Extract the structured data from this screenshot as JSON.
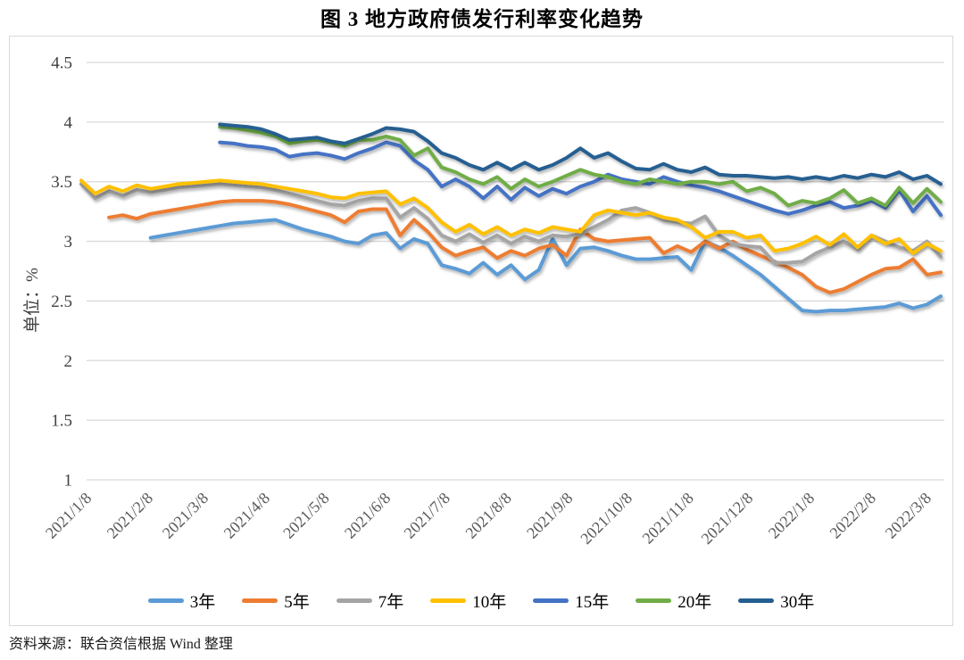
{
  "title": "图 3  地方政府债发行利率变化趋势",
  "source": "资料来源：联合资信根据 Wind 整理",
  "chart_data": {
    "type": "line",
    "title": "图 3  地方政府债发行利率变化趋势",
    "xlabel": "",
    "ylabel": "单位：%",
    "ylim": [
      1,
      4.5
    ],
    "ytick_step": 0.5,
    "yticks": [
      4.5,
      4,
      3.5,
      3,
      2.5,
      2,
      1.5,
      1
    ],
    "grid": true,
    "legend_position": "bottom",
    "n_points": 63,
    "x_tick_labels": [
      {
        "text": "2021/1/8",
        "index": 0
      },
      {
        "text": "2021/2/8",
        "index": 4.43
      },
      {
        "text": "2021/3/8",
        "index": 8.43
      },
      {
        "text": "2021/4/8",
        "index": 12.86
      },
      {
        "text": "2021/5/8",
        "index": 17.14
      },
      {
        "text": "2021/6/8",
        "index": 21.57
      },
      {
        "text": "2021/7/8",
        "index": 25.86
      },
      {
        "text": "2021/8/8",
        "index": 30.29
      },
      {
        "text": "2021/9/8",
        "index": 34.71
      },
      {
        "text": "2021/10/8",
        "index": 39
      },
      {
        "text": "2021/11/8",
        "index": 43.43
      },
      {
        "text": "2021/12/8",
        "index": 47.71
      },
      {
        "text": "2022/1/8",
        "index": 52.14
      },
      {
        "text": "2022/2/8",
        "index": 56.57
      },
      {
        "text": "2022/3/8",
        "index": 60.57
      }
    ],
    "series": [
      {
        "id": "3y",
        "name": "3年",
        "color": "#5B9BD5",
        "values": [
          null,
          null,
          null,
          null,
          null,
          3.03,
          3.05,
          3.07,
          3.09,
          3.11,
          3.13,
          3.15,
          3.16,
          3.17,
          3.18,
          3.14,
          3.1,
          3.07,
          3.04,
          3.0,
          2.98,
          3.05,
          3.07,
          2.94,
          3.02,
          2.98,
          2.8,
          2.77,
          2.73,
          2.82,
          2.72,
          2.8,
          2.68,
          2.76,
          3.02,
          2.8,
          2.94,
          2.95,
          2.92,
          2.88,
          2.85,
          2.85,
          2.86,
          2.87,
          2.76,
          3.0,
          2.95,
          2.88,
          2.8,
          2.72,
          2.62,
          2.52,
          2.42,
          2.41,
          2.42,
          2.42,
          2.43,
          2.44,
          2.45,
          2.48,
          2.44,
          2.47,
          2.54
        ]
      },
      {
        "id": "5y",
        "name": "5年",
        "color": "#ED7D31",
        "values": [
          null,
          null,
          3.2,
          3.22,
          3.19,
          3.23,
          3.25,
          3.27,
          3.29,
          3.31,
          3.33,
          3.34,
          3.34,
          3.34,
          3.33,
          3.31,
          3.28,
          3.25,
          3.22,
          3.16,
          3.25,
          3.27,
          3.27,
          3.05,
          3.18,
          3.08,
          2.95,
          2.88,
          2.92,
          2.95,
          2.86,
          2.92,
          2.88,
          2.94,
          2.97,
          2.88,
          3.1,
          3.02,
          3.0,
          3.01,
          3.02,
          3.03,
          2.9,
          2.96,
          2.91,
          3.0,
          2.94,
          3.0,
          2.93,
          2.88,
          2.83,
          2.78,
          2.72,
          2.62,
          2.57,
          2.6,
          2.66,
          2.72,
          2.77,
          2.78,
          2.85,
          2.72,
          2.74
        ]
      },
      {
        "id": "7y",
        "name": "7年",
        "color": "#A5A5A5",
        "values": [
          3.48,
          3.36,
          3.42,
          3.38,
          3.43,
          3.41,
          3.43,
          3.45,
          3.46,
          3.47,
          3.48,
          3.47,
          3.46,
          3.45,
          3.43,
          3.4,
          3.37,
          3.34,
          3.31,
          3.3,
          3.34,
          3.36,
          3.36,
          3.2,
          3.28,
          3.19,
          3.05,
          3.0,
          3.06,
          2.99,
          3.05,
          2.98,
          3.04,
          3.0,
          3.05,
          3.04,
          3.06,
          3.12,
          3.18,
          3.26,
          3.28,
          3.24,
          3.18,
          3.16,
          3.15,
          3.21,
          3.05,
          2.98,
          2.96,
          2.95,
          2.82,
          2.82,
          2.83,
          2.9,
          2.95,
          3.0,
          2.93,
          3.05,
          3.0,
          2.95,
          2.92,
          3.0,
          2.87
        ]
      },
      {
        "id": "10y",
        "name": "10年",
        "color": "#FFC000",
        "values": [
          3.51,
          3.4,
          3.46,
          3.42,
          3.47,
          3.44,
          3.46,
          3.48,
          3.49,
          3.5,
          3.51,
          3.5,
          3.49,
          3.48,
          3.46,
          3.44,
          3.42,
          3.4,
          3.37,
          3.36,
          3.4,
          3.41,
          3.42,
          3.31,
          3.36,
          3.28,
          3.16,
          3.08,
          3.14,
          3.06,
          3.12,
          3.05,
          3.1,
          3.07,
          3.12,
          3.1,
          3.08,
          3.22,
          3.26,
          3.24,
          3.22,
          3.24,
          3.2,
          3.18,
          3.12,
          3.03,
          3.08,
          3.08,
          3.03,
          3.05,
          2.92,
          2.94,
          2.98,
          3.04,
          2.97,
          3.06,
          2.95,
          3.05,
          2.98,
          3.02,
          2.9,
          2.98,
          2.92
        ]
      },
      {
        "id": "15y",
        "name": "15年",
        "color": "#4472C4",
        "values": [
          null,
          null,
          null,
          null,
          null,
          null,
          null,
          null,
          null,
          null,
          3.83,
          3.82,
          3.8,
          3.79,
          3.77,
          3.71,
          3.73,
          3.74,
          3.72,
          3.69,
          3.74,
          3.78,
          3.83,
          3.8,
          3.68,
          3.6,
          3.46,
          3.52,
          3.46,
          3.36,
          3.46,
          3.35,
          3.45,
          3.38,
          3.44,
          3.4,
          3.46,
          3.5,
          3.56,
          3.52,
          3.5,
          3.48,
          3.54,
          3.5,
          3.47,
          3.45,
          3.42,
          3.38,
          3.34,
          3.3,
          3.26,
          3.23,
          3.26,
          3.3,
          3.33,
          3.28,
          3.3,
          3.34,
          3.28,
          3.43,
          3.25,
          3.38,
          3.22
        ]
      },
      {
        "id": "20y",
        "name": "20年",
        "color": "#70AD47",
        "values": [
          null,
          null,
          null,
          null,
          null,
          null,
          null,
          null,
          null,
          null,
          3.96,
          3.95,
          3.93,
          3.91,
          3.88,
          3.82,
          3.84,
          3.85,
          3.83,
          3.8,
          3.85,
          3.85,
          3.88,
          3.85,
          3.72,
          3.78,
          3.62,
          3.58,
          3.52,
          3.48,
          3.54,
          3.44,
          3.52,
          3.46,
          3.5,
          3.55,
          3.6,
          3.56,
          3.54,
          3.5,
          3.48,
          3.52,
          3.5,
          3.48,
          3.5,
          3.5,
          3.48,
          3.5,
          3.42,
          3.45,
          3.4,
          3.3,
          3.34,
          3.32,
          3.36,
          3.43,
          3.32,
          3.36,
          3.3,
          3.45,
          3.32,
          3.44,
          3.33
        ]
      },
      {
        "id": "30y",
        "name": "30年",
        "color": "#255E91",
        "values": [
          null,
          null,
          null,
          null,
          null,
          null,
          null,
          null,
          null,
          null,
          3.98,
          3.97,
          3.96,
          3.94,
          3.9,
          3.85,
          3.86,
          3.87,
          3.84,
          3.82,
          3.86,
          3.9,
          3.95,
          3.94,
          3.92,
          3.84,
          3.74,
          3.7,
          3.64,
          3.6,
          3.66,
          3.6,
          3.66,
          3.6,
          3.64,
          3.7,
          3.78,
          3.7,
          3.74,
          3.67,
          3.61,
          3.6,
          3.65,
          3.6,
          3.58,
          3.62,
          3.56,
          3.55,
          3.55,
          3.54,
          3.53,
          3.54,
          3.52,
          3.54,
          3.52,
          3.55,
          3.53,
          3.56,
          3.54,
          3.58,
          3.52,
          3.55,
          3.48
        ]
      }
    ],
    "style": {
      "grid_color": "#d9d9d9",
      "frame_color": "#d9d9d9",
      "y_tick_color": "#404040",
      "x_tick_color": "#595959",
      "background": "#ffffff"
    }
  }
}
